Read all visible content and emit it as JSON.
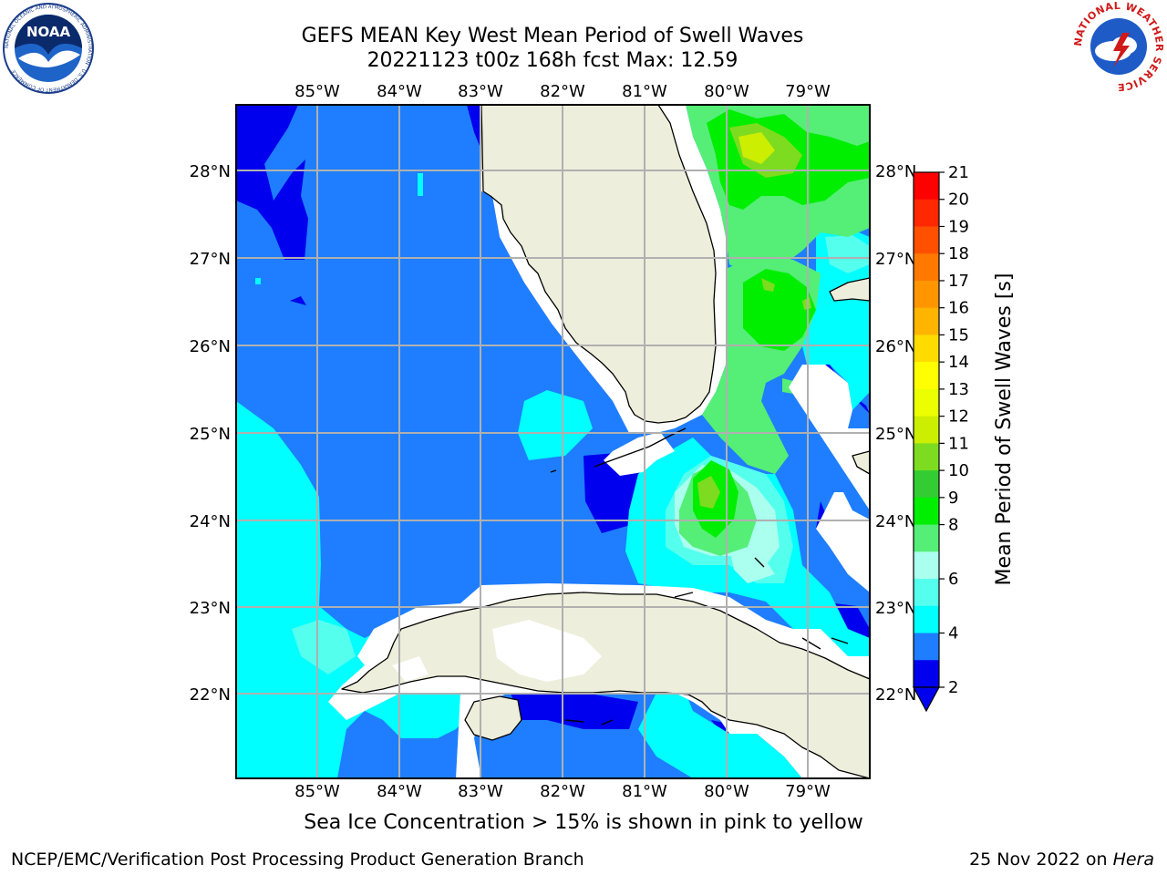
{
  "header": {
    "title_line1": "GEFS MEAN Key West Mean Period of Swell Waves",
    "title_line2": "20221123 t00z 168h fcst   Max: 12.59"
  },
  "logos": {
    "left": {
      "name": "NOAA",
      "ring_text": "NATIONAL OCEANIC AND ATMOSPHERIC ADMINISTRATION · U.S. DEPARTMENT OF COMMERCE"
    },
    "right": {
      "ring_text": "NATIONAL WEATHER SERVICE"
    }
  },
  "map": {
    "lon_labels": [
      "85°W",
      "84°W",
      "83°W",
      "82°W",
      "81°W",
      "80°W",
      "79°W"
    ],
    "lat_labels": [
      "28°N",
      "27°N",
      "26°N",
      "25°N",
      "24°N",
      "23°N",
      "22°N"
    ],
    "colors": {
      "land": "#eeeedc",
      "coast": "#000000",
      "grid": "#b0b0b0",
      "nodata": "#ffffff"
    }
  },
  "colorbar": {
    "label": "Mean Period of Swell Waves [s]",
    "ticks": [
      "21",
      "20",
      "19",
      "18",
      "17",
      "16",
      "15",
      "14",
      "13",
      "12",
      "11",
      "10",
      "9",
      "8",
      "6",
      "4",
      "2"
    ],
    "colors": [
      "#ff0000",
      "#ff2800",
      "#ff5000",
      "#ff7800",
      "#ff9600",
      "#ffb400",
      "#ffdc00",
      "#ffff00",
      "#ebff00",
      "#ccee00",
      "#7ddc1f",
      "#33cc33",
      "#00ee00",
      "#55ee77",
      "#aaffee",
      "#55ffee",
      "#00ffff",
      "#1e7eff",
      "#0000ee"
    ],
    "under_color": "#0000ee"
  },
  "caption": "Sea Ice Concentration > 15% is shown in pink to yellow",
  "footer": {
    "left": "NCEP/EMC/Verification Post Processing Product Generation Branch",
    "date": "25 Nov 2022",
    "on_word": "on",
    "machine": "Hera"
  }
}
